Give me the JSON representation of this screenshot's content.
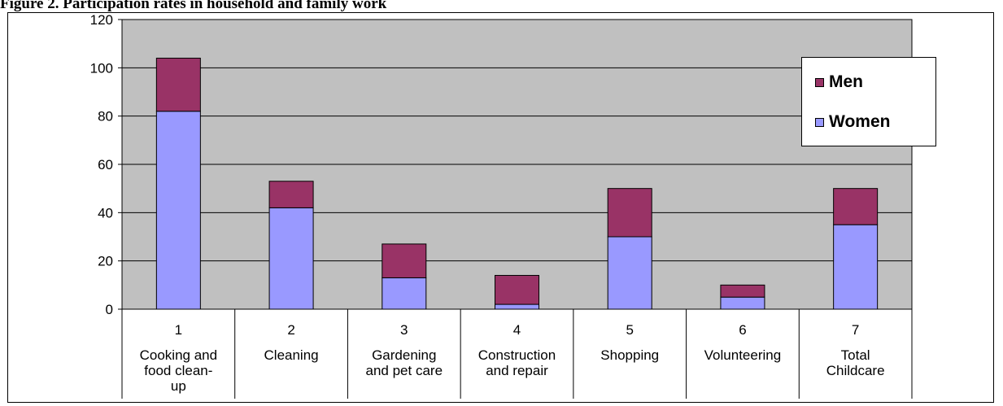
{
  "caption": "Figure 2. Participation rates in household and family work",
  "colors": {
    "women": "#9999ff",
    "men": "#993366",
    "plot_background": "#c0c0c0",
    "gridline": "#000000"
  },
  "legend": {
    "position": "right",
    "items": [
      {
        "label": "Men",
        "color": "#993366"
      },
      {
        "label": "Women",
        "color": "#9999ff"
      }
    ]
  },
  "chart_data": {
    "type": "bar",
    "stacked": true,
    "title": "",
    "xlabel": "",
    "ylabel": "",
    "ylim": [
      0,
      120
    ],
    "yticks": [
      0,
      20,
      40,
      60,
      80,
      100,
      120
    ],
    "grid": true,
    "category_numbers": [
      "1",
      "2",
      "3",
      "4",
      "5",
      "6",
      "7"
    ],
    "categories": [
      "Cooking and food clean-up",
      "Cleaning",
      "Gardening and pet care",
      "Construction and repair",
      "Shopping",
      "Volunteering",
      "Total Childcare"
    ],
    "category_label_lines": [
      [
        "Cooking and",
        "food clean-",
        "up"
      ],
      [
        "Cleaning"
      ],
      [
        "Gardening",
        "and pet care"
      ],
      [
        "Construction",
        "and repair"
      ],
      [
        "Shopping"
      ],
      [
        "Volunteering"
      ],
      [
        "Total",
        "Childcare"
      ]
    ],
    "series": [
      {
        "name": "Women",
        "values": [
          82,
          42,
          13,
          2,
          30,
          5,
          35
        ]
      },
      {
        "name": "Men",
        "values": [
          22,
          11,
          14,
          12,
          20,
          5,
          15
        ]
      }
    ]
  }
}
